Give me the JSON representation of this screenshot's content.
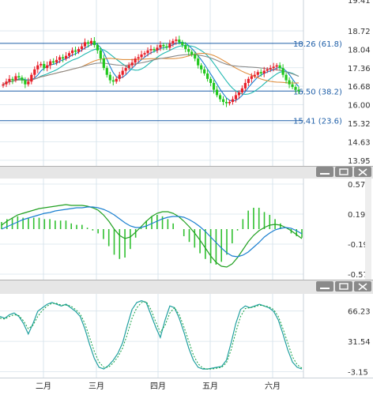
{
  "colors": {
    "up": "#e8202a",
    "down": "#22c81e",
    "ma_short": "#1a7fd0",
    "ma_mid": "#e09040",
    "ma_long": "#8a8a8a",
    "ma_teal": "#20b8b0",
    "fib": "#1f5fa8",
    "macd_dif": "#20a020",
    "macd_dea": "#1a7fd0",
    "macd_hist": "#30c030",
    "k_line": "#20a0a0",
    "d_line": "#10a040",
    "grid": "#d8e4ec",
    "divider": "#c0c0c0"
  },
  "icons": {
    "minimize": "minimize-icon",
    "restore": "restore-icon",
    "close": "close-icon"
  },
  "chart_data": [
    {
      "type": "candlestick",
      "title": "",
      "x": [
        "二月",
        "三月",
        "四月",
        "五月",
        "六月"
      ],
      "ylim": [
        13.8,
        19.8
      ],
      "y_ticks": [
        "18.72",
        "18.04",
        "17.36",
        "16.68",
        "16.00",
        "15.32",
        "14.63",
        "13.95"
      ],
      "y_tick_values": [
        18.72,
        18.04,
        17.36,
        16.68,
        16.0,
        15.32,
        14.63,
        13.95
      ],
      "top_tick_partial": "19.41",
      "fib_levels": [
        {
          "label": "18.26 (61.8)",
          "value": 18.26
        },
        {
          "label": "16.50 (38.2)",
          "value": 16.5
        },
        {
          "label": "15.41 (23.6)",
          "value": 15.41
        }
      ],
      "closes": [
        16.75,
        16.85,
        16.95,
        16.9,
        17.05,
        17.0,
        16.9,
        16.75,
        16.85,
        17.1,
        17.3,
        17.45,
        17.5,
        17.35,
        17.45,
        17.6,
        17.55,
        17.65,
        17.75,
        17.7,
        17.8,
        17.9,
        18.0,
        17.95,
        18.05,
        18.15,
        18.3,
        18.25,
        18.35,
        18.2,
        18.0,
        17.7,
        17.35,
        17.1,
        16.9,
        16.85,
        16.95,
        17.1,
        17.25,
        17.35,
        17.45,
        17.55,
        17.7,
        17.75,
        17.85,
        17.9,
        18.0,
        18.05,
        18.0,
        18.1,
        18.2,
        18.15,
        18.1,
        18.25,
        18.35,
        18.4,
        18.3,
        18.2,
        18.05,
        17.95,
        17.85,
        17.7,
        17.45,
        17.3,
        17.15,
        16.95,
        16.8,
        16.55,
        16.35,
        16.2,
        16.1,
        16.05,
        16.1,
        16.2,
        16.35,
        16.45,
        16.6,
        16.8,
        16.95,
        17.05,
        17.1,
        17.2,
        17.15,
        17.25,
        17.3,
        17.35,
        17.4,
        17.45,
        17.35,
        17.1,
        16.9,
        16.75,
        16.65,
        16.55,
        16.5
      ]
    },
    {
      "type": "line",
      "title": "",
      "ylim": [
        -0.62,
        0.62
      ],
      "y_ticks": [
        "0.57",
        "0.19",
        "-0.19",
        "-0.57"
      ],
      "y_tick_values": [
        0.57,
        0.19,
        -0.19,
        -0.57
      ],
      "series": [
        {
          "name": "",
          "values": [
            0.05,
            0.1,
            0.14,
            0.18,
            0.2,
            0.22,
            0.24,
            0.26,
            0.27,
            0.28,
            0.29,
            0.3,
            0.31,
            0.3,
            0.3,
            0.3,
            0.29,
            0.27,
            0.24,
            0.18,
            0.1,
            0.0,
            -0.08,
            -0.12,
            -0.1,
            -0.04,
            0.03,
            0.1,
            0.16,
            0.2,
            0.22,
            0.22,
            0.2,
            0.16,
            0.1,
            0.03,
            -0.05,
            -0.14,
            -0.24,
            -0.34,
            -0.42,
            -0.47,
            -0.48,
            -0.44,
            -0.36,
            -0.26,
            -0.16,
            -0.08,
            -0.02,
            0.02,
            0.05,
            0.06,
            0.05,
            0.02,
            -0.02,
            -0.07,
            -0.12
          ]
        },
        {
          "name": "",
          "values": [
            0.0,
            0.03,
            0.06,
            0.09,
            0.12,
            0.14,
            0.16,
            0.18,
            0.2,
            0.21,
            0.23,
            0.24,
            0.25,
            0.26,
            0.27,
            0.27,
            0.28,
            0.28,
            0.27,
            0.25,
            0.22,
            0.18,
            0.13,
            0.08,
            0.04,
            0.02,
            0.02,
            0.04,
            0.07,
            0.1,
            0.13,
            0.15,
            0.16,
            0.16,
            0.15,
            0.12,
            0.08,
            0.03,
            -0.03,
            -0.1,
            -0.17,
            -0.24,
            -0.3,
            -0.34,
            -0.35,
            -0.33,
            -0.29,
            -0.23,
            -0.17,
            -0.1,
            -0.05,
            -0.01,
            0.01,
            0.02,
            0.01,
            -0.02,
            -0.06
          ]
        }
      ]
    },
    {
      "type": "line",
      "title": "",
      "ylim": [
        -8,
        84
      ],
      "y_ticks": [
        "66.23",
        "31.54",
        "-3.15"
      ],
      "y_tick_values": [
        66.23,
        31.54,
        -3.15
      ],
      "series": [
        {
          "name": "",
          "values": [
            60,
            58,
            62,
            64,
            60,
            52,
            40,
            52,
            66,
            70,
            74,
            76,
            74,
            72,
            74,
            70,
            66,
            60,
            46,
            28,
            12,
            2,
            0,
            4,
            10,
            18,
            30,
            50,
            68,
            76,
            78,
            76,
            62,
            48,
            36,
            56,
            72,
            70,
            58,
            42,
            24,
            10,
            2,
            0,
            0,
            1,
            2,
            3,
            10,
            30,
            52,
            68,
            72,
            70,
            72,
            74,
            72,
            70,
            66,
            56,
            40,
            22,
            8,
            2,
            0
          ]
        },
        {
          "name": "",
          "values": [
            58,
            57,
            60,
            62,
            61,
            55,
            46,
            50,
            60,
            67,
            72,
            75,
            75,
            73,
            73,
            72,
            68,
            63,
            52,
            36,
            20,
            8,
            2,
            2,
            7,
            14,
            24,
            40,
            58,
            70,
            76,
            77,
            68,
            54,
            42,
            50,
            64,
            70,
            62,
            48,
            32,
            16,
            6,
            1,
            0,
            0,
            1,
            2,
            7,
            22,
            42,
            60,
            69,
            70,
            71,
            73,
            72,
            71,
            68,
            60,
            46,
            30,
            14,
            5,
            1
          ]
        }
      ]
    }
  ]
}
